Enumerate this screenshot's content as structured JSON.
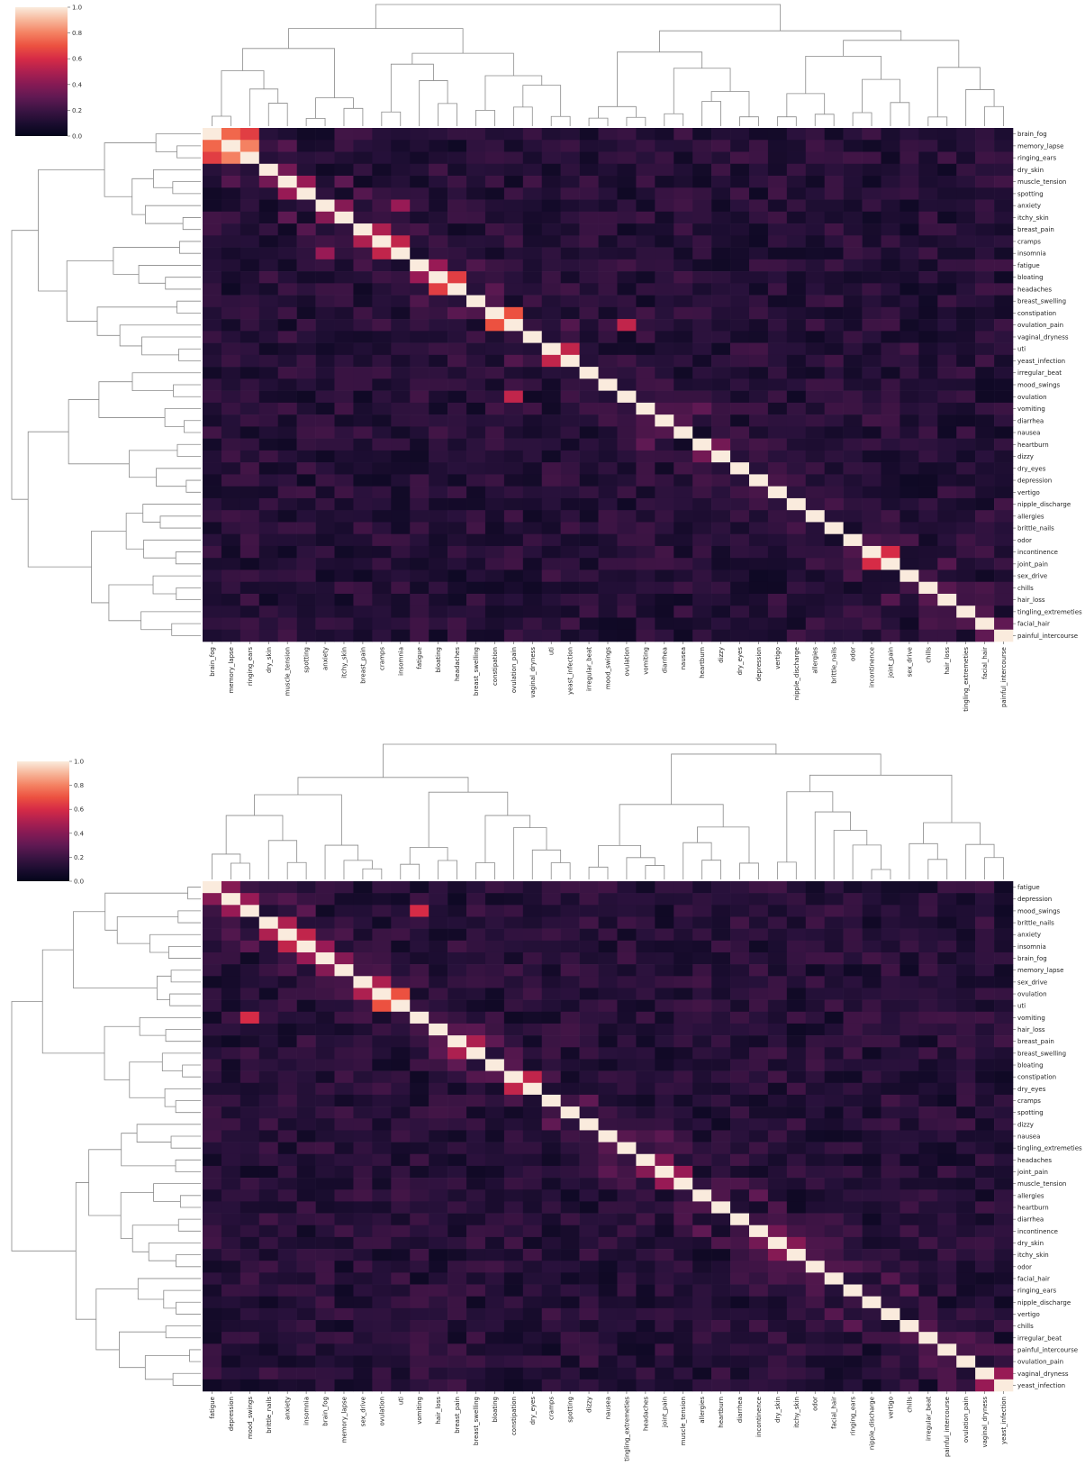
{
  "chart_data": [
    {
      "type": "heatmap",
      "title": "",
      "xlabel": "",
      "ylabel": "",
      "row_labels": [
        "brain_fog",
        "memory_lapse",
        "ringing_ears",
        "dry_skin",
        "muscle_tension",
        "spotting",
        "anxiety",
        "itchy_skin",
        "breast_pain",
        "cramps",
        "insomnia",
        "fatigue",
        "bloating",
        "headaches",
        "breast_swelling",
        "constipation",
        "ovulation_pain",
        "vaginal_dryness",
        "uti",
        "yeast_infection",
        "irregular_beat",
        "mood_swings",
        "ovulation",
        "vomiting",
        "diarrhea",
        "nausea",
        "heartburn",
        "dizzy",
        "dry_eyes",
        "depression",
        "vertigo",
        "nipple_discharge",
        "allergies",
        "brittle_nails",
        "odor",
        "incontinence",
        "joint_pain",
        "sex_drive",
        "chills",
        "hair_loss",
        "tingling_extremeties",
        "facial_hair",
        "painful_intercourse"
      ],
      "col_labels": [
        "brain_fog",
        "memory_lapse",
        "ringing_ears",
        "dry_skin",
        "muscle_tension",
        "spotting",
        "anxiety",
        "itchy_skin",
        "breast_pain",
        "cramps",
        "insomnia",
        "fatigue",
        "bloating",
        "headaches",
        "breast_swelling",
        "constipation",
        "ovulation_pain",
        "vaginal_dryness",
        "uti",
        "yeast_infection",
        "irregular_beat",
        "mood_swings",
        "ovulation",
        "vomiting",
        "diarrhea",
        "nausea",
        "heartburn",
        "dizzy",
        "dry_eyes",
        "depression",
        "vertigo",
        "nipple_discharge",
        "allergies",
        "brittle_nails",
        "odor",
        "incontinence",
        "joint_pain",
        "sex_drive",
        "chills",
        "hair_loss",
        "tingling_extremeties",
        "facial_hair",
        "painful_intercourse"
      ],
      "colorbar": {
        "ticks": [
          "0.0",
          "0.2",
          "0.4",
          "0.6",
          "0.8",
          "1.0"
        ],
        "range": [
          0,
          1
        ]
      },
      "diagonal": 1.0,
      "strong_pairs": [
        {
          "a": "brain_fog",
          "b": "memory_lapse",
          "value": 0.75
        },
        {
          "a": "brain_fog",
          "b": "ringing_ears",
          "value": 0.65
        },
        {
          "a": "memory_lapse",
          "b": "ringing_ears",
          "value": 0.8
        },
        {
          "a": "dry_skin",
          "b": "muscle_tension",
          "value": 0.35
        },
        {
          "a": "muscle_tension",
          "b": "spotting",
          "value": 0.45
        },
        {
          "a": "anxiety",
          "b": "insomnia",
          "value": 0.45
        },
        {
          "a": "breast_pain",
          "b": "cramps",
          "value": 0.5
        },
        {
          "a": "cramps",
          "b": "insomnia",
          "value": 0.55
        },
        {
          "a": "anxiety",
          "b": "itchy_skin",
          "value": 0.4
        },
        {
          "a": "bloating",
          "b": "headaches",
          "value": 0.65
        },
        {
          "a": "fatigue",
          "b": "bloating",
          "value": 0.45
        },
        {
          "a": "constipation",
          "b": "ovulation_pain",
          "value": 0.7
        },
        {
          "a": "ovulation_pain",
          "b": "ovulation",
          "value": 0.55
        },
        {
          "a": "uti",
          "b": "yeast_infection",
          "value": 0.55
        },
        {
          "a": "heartburn",
          "b": "dizzy",
          "value": 0.35
        },
        {
          "a": "incontinence",
          "b": "joint_pain",
          "value": 0.6
        },
        {
          "a": "facial_hair",
          "b": "painful_intercourse",
          "value": 0.3
        }
      ]
    },
    {
      "type": "heatmap",
      "title": "",
      "xlabel": "",
      "ylabel": "",
      "row_labels": [
        "fatigue",
        "depression",
        "mood_swings",
        "brittle_nails",
        "anxiety",
        "insomnia",
        "brain_fog",
        "memory_lapse",
        "sex_drive",
        "ovulation",
        "uti",
        "vomiting",
        "hair_loss",
        "breast_pain",
        "breast_swelling",
        "bloating",
        "constipation",
        "dry_eyes",
        "cramps",
        "spotting",
        "dizzy",
        "nausea",
        "tingling_extremeties",
        "headaches",
        "joint_pain",
        "muscle_tension",
        "allergies",
        "heartburn",
        "diarrhea",
        "incontinence",
        "dry_skin",
        "itchy_skin",
        "odor",
        "facial_hair",
        "ringing_ears",
        "nipple_discharge",
        "vertigo",
        "chills",
        "irregular_beat",
        "painful_intercourse",
        "ovulation_pain",
        "vaginal_dryness",
        "yeast_infection"
      ],
      "col_labels": [
        "fatigue",
        "depression",
        "mood_swings",
        "brittle_nails",
        "anxiety",
        "insomnia",
        "brain_fog",
        "memory_lapse",
        "sex_drive",
        "ovulation",
        "uti",
        "vomiting",
        "hair_loss",
        "breast_pain",
        "breast_swelling",
        "bloating",
        "constipation",
        "dry_eyes",
        "cramps",
        "spotting",
        "dizzy",
        "nausea",
        "tingling_extremeties",
        "headaches",
        "joint_pain",
        "muscle_tension",
        "allergies",
        "heartburn",
        "diarrhea",
        "incontinence",
        "dry_skin",
        "itchy_skin",
        "odor",
        "facial_hair",
        "ringing_ears",
        "nipple_discharge",
        "vertigo",
        "chills",
        "irregular_beat",
        "painful_intercourse",
        "ovulation_pain",
        "vaginal_dryness",
        "yeast_infection"
      ],
      "colorbar": {
        "ticks": [
          "0.0",
          "0.2",
          "0.4",
          "0.6",
          "0.8",
          "1.0"
        ],
        "range": [
          0,
          1
        ]
      },
      "diagonal": 1.0,
      "strong_pairs": [
        {
          "a": "fatigue",
          "b": "depression",
          "value": 0.4
        },
        {
          "a": "depression",
          "b": "mood_swings",
          "value": 0.45
        },
        {
          "a": "mood_swings",
          "b": "vomiting",
          "value": 0.6
        },
        {
          "a": "brittle_nails",
          "b": "anxiety",
          "value": 0.5
        },
        {
          "a": "anxiety",
          "b": "insomnia",
          "value": 0.55
        },
        {
          "a": "insomnia",
          "b": "brain_fog",
          "value": 0.45
        },
        {
          "a": "brain_fog",
          "b": "memory_lapse",
          "value": 0.4
        },
        {
          "a": "sex_drive",
          "b": "ovulation",
          "value": 0.5
        },
        {
          "a": "ovulation",
          "b": "uti",
          "value": 0.7
        },
        {
          "a": "breast_pain",
          "b": "breast_swelling",
          "value": 0.5
        },
        {
          "a": "constipation",
          "b": "dry_eyes",
          "value": 0.55
        },
        {
          "a": "headaches",
          "b": "joint_pain",
          "value": 0.4
        },
        {
          "a": "joint_pain",
          "b": "muscle_tension",
          "value": 0.45
        },
        {
          "a": "incontinence",
          "b": "dry_skin",
          "value": 0.35
        },
        {
          "a": "dry_skin",
          "b": "itchy_skin",
          "value": 0.4
        },
        {
          "a": "vaginal_dryness",
          "b": "yeast_infection",
          "value": 0.45
        }
      ]
    }
  ]
}
